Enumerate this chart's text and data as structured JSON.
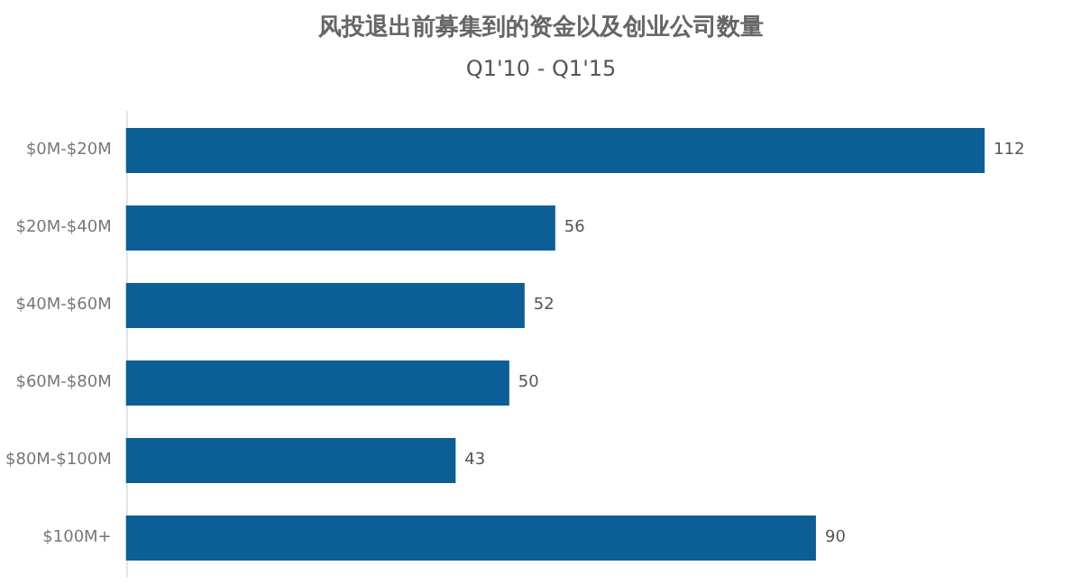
{
  "chart_data": {
    "type": "bar",
    "orientation": "horizontal",
    "title": "风投退出前募集到的资金以及创业公司数量",
    "subtitle": "Q1'10 - Q1'15",
    "categories": [
      "$0M-$20M",
      "$20M-$40M",
      "$40M-$60M",
      "$60M-$80M",
      "$80M-$100M",
      "$100M+"
    ],
    "values": [
      112,
      56,
      52,
      50,
      43,
      90
    ],
    "color": "#0b5e96",
    "data_labels": true
  }
}
